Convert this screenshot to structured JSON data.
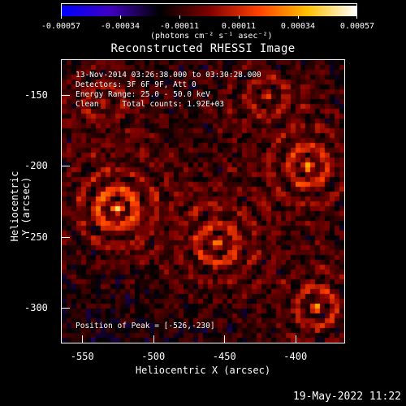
{
  "colorbar": {
    "ticks": [
      "-0.00057",
      "-0.00034",
      "-0.00011",
      "0.00011",
      "0.00034",
      "0.00057"
    ],
    "units": "(photons cm⁻² s⁻¹ asec⁻²)",
    "range": [
      -0.00057,
      0.00057
    ],
    "colors": [
      "#0000ff",
      "#4000c0",
      "#000000",
      "#800000",
      "#ff4000",
      "#ffc000",
      "#ffffff"
    ]
  },
  "title": "Reconstructed RHESSI Image",
  "annotations": {
    "line1": "13-Nov-2014 03:26:38.000 to 03:30:28.000",
    "line2": "Detectors: 3F 6F 9F, Att 0",
    "line3": "Energy Range: 25.0 - 50.0 keV",
    "line4": "Clean     Total counts: 1.92E+03",
    "peak": "Position of Peak = [-526,-230]"
  },
  "axes": {
    "xlabel": "Heliocentric X (arcsec)",
    "ylabel": "Heliocentric Y (arcsec)",
    "xticks": [
      "-550",
      "-500",
      "-450",
      "-400"
    ],
    "yticks": [
      "-150",
      "-200",
      "-250",
      "-300"
    ],
    "xlim": [
      -565,
      -365
    ],
    "ylim": [
      -325,
      -125
    ]
  },
  "footer": {
    "date": "19-May-2022 11:22"
  },
  "chart_data": {
    "type": "heatmap",
    "title": "Reconstructed RHESSI Image",
    "xlabel": "Heliocentric X (arcsec)",
    "ylabel": "Heliocentric Y (arcsec)",
    "xlim": [
      -565,
      -365
    ],
    "ylim": [
      -325,
      -125
    ],
    "value_range": [
      -0.00057,
      0.00057
    ],
    "peak": [
      -526,
      -230
    ],
    "sources": [
      {
        "x": -526,
        "y": -230,
        "amp": 1.0
      },
      {
        "x": -455,
        "y": -255,
        "amp": 0.7
      },
      {
        "x": -390,
        "y": -200,
        "amp": 0.75
      },
      {
        "x": -385,
        "y": -300,
        "amp": 0.7
      },
      {
        "x": -535,
        "y": -155,
        "amp": 0.55
      },
      {
        "x": -420,
        "y": -150,
        "amp": 0.5
      }
    ]
  }
}
